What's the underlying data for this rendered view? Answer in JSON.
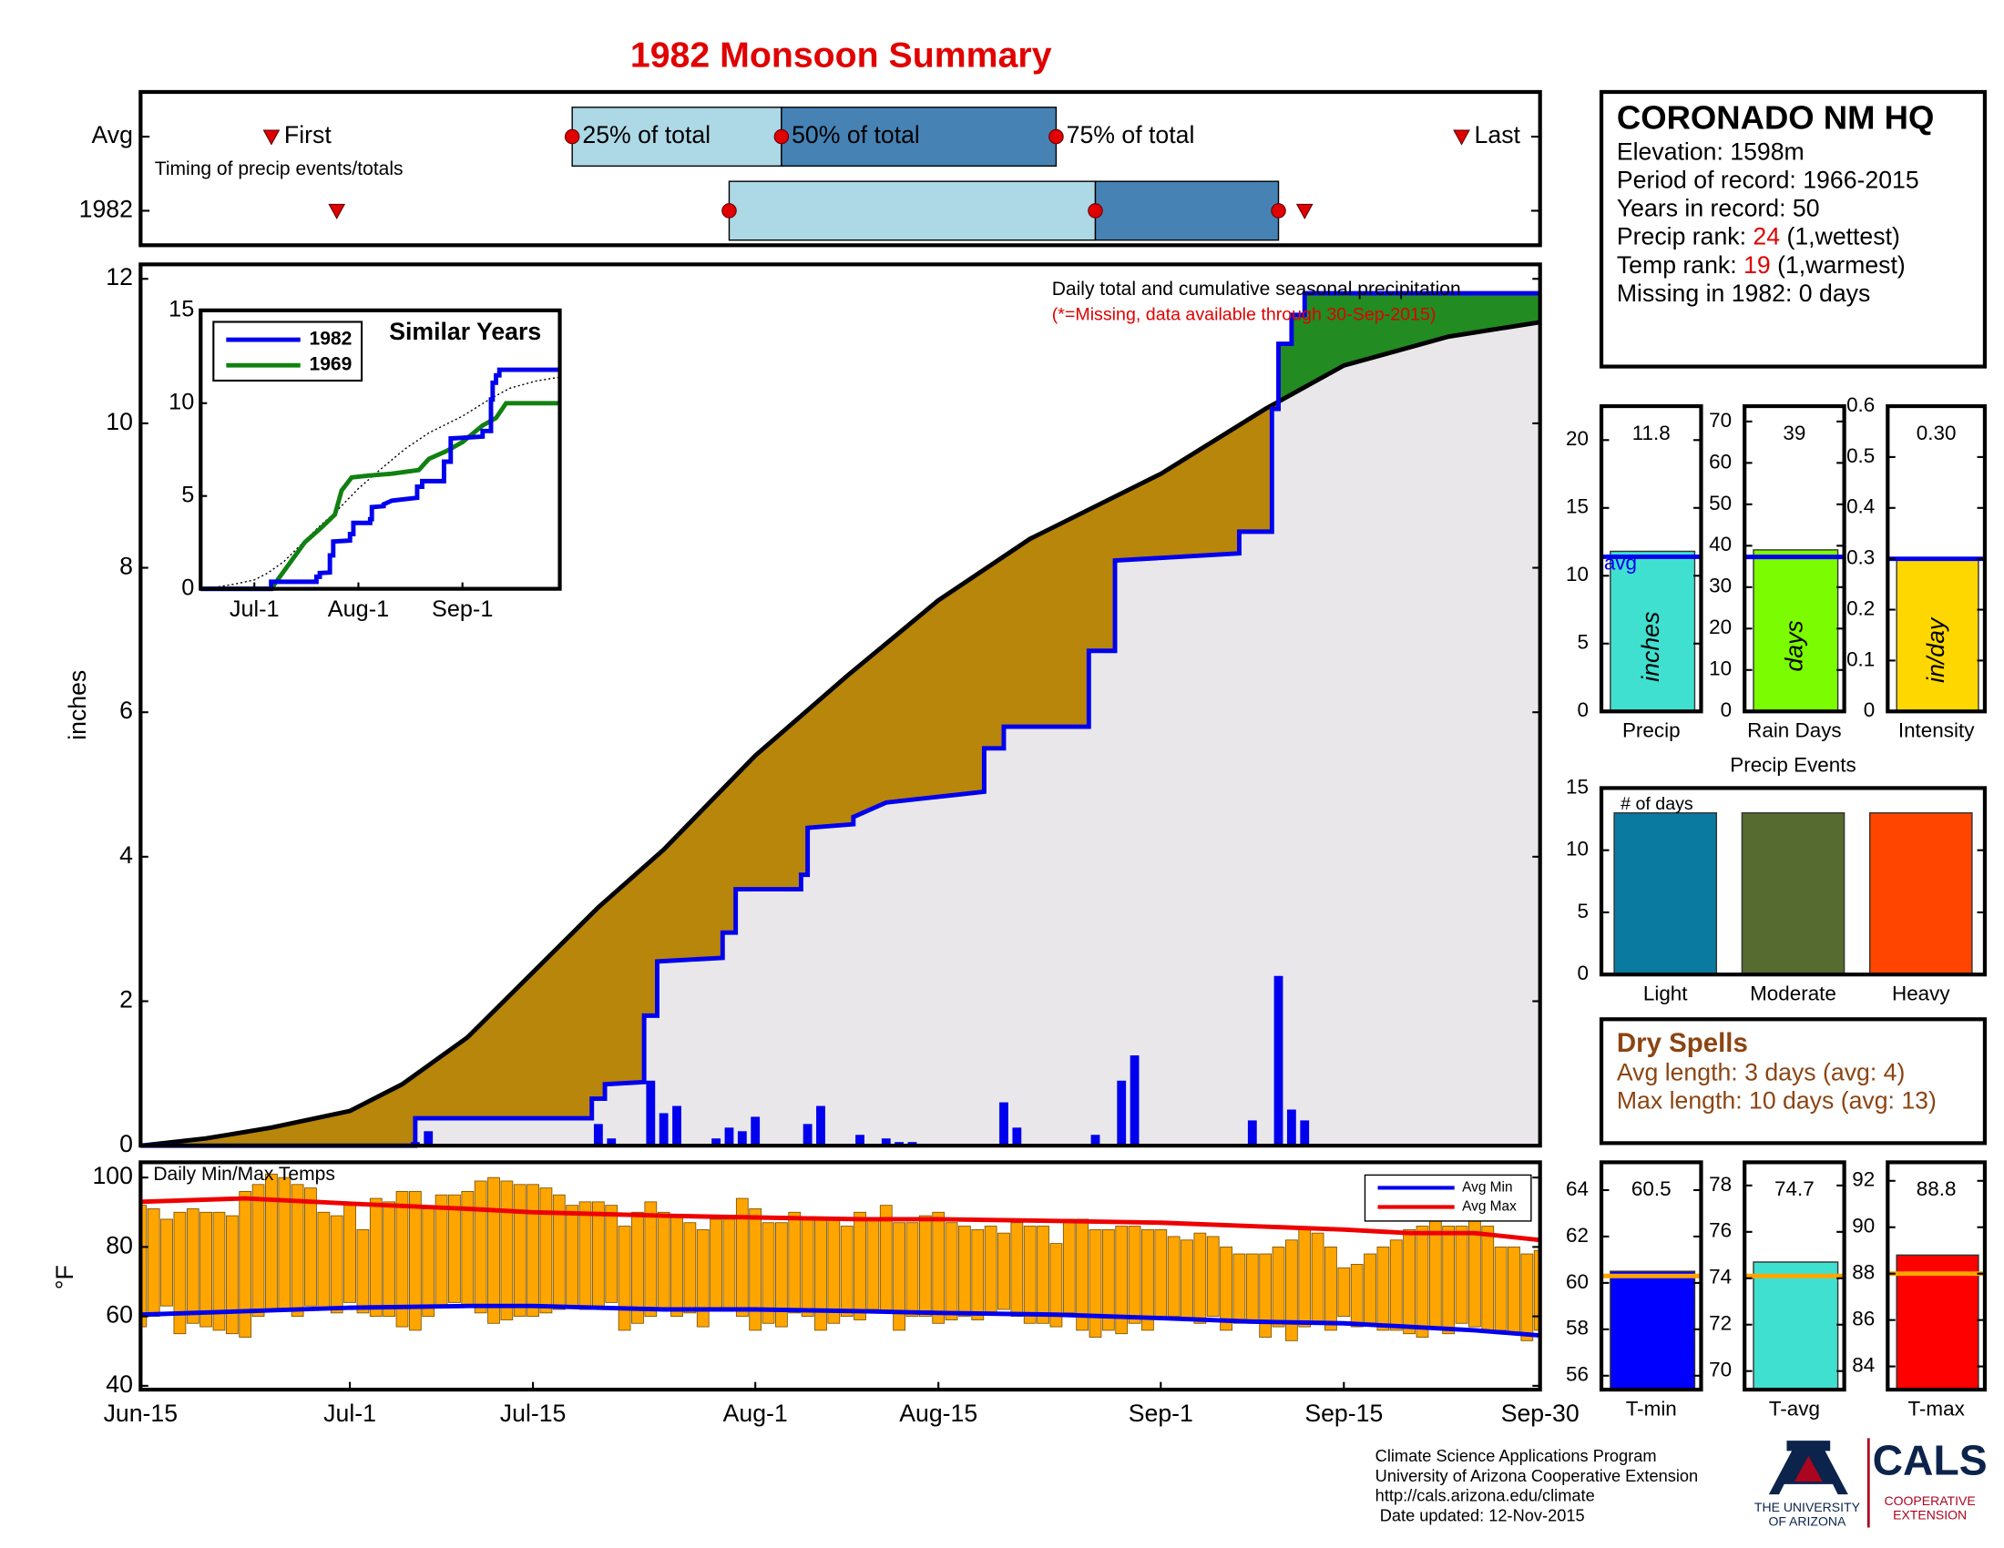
{
  "title": "1982 Monsoon Summary",
  "chart_data": [
    {
      "type": "timing",
      "note": "Timing of precip events/totals",
      "value_names": [
        "First",
        "25% of total",
        "50% of total",
        "75% of total",
        "Last"
      ],
      "xlim": [
        0,
        107
      ],
      "colors": {
        "early": "#add8e6",
        "late": "#4682b4",
        "marker": "#e00000"
      },
      "series": [
        {
          "name": "Avg",
          "values": [
            10,
            33,
            49,
            70,
            101
          ]
        },
        {
          "name": "1982",
          "values": [
            15,
            45,
            73,
            87,
            89
          ]
        }
      ]
    },
    {
      "type": "cumulative",
      "title": "Daily total and cumulative seasonal precipitation",
      "subtitle": "(*=Missing, data available through 30-Sep-2015)",
      "ylabel": "inches",
      "xlim": [
        0,
        107
      ],
      "ylim": [
        0,
        12.2
      ],
      "yticks": [
        0,
        2,
        4,
        6,
        8,
        10,
        12
      ],
      "colors": {
        "background": "#e9e7e9",
        "below": "#b8860b",
        "above": "#228b22"
      },
      "series": [
        {
          "color": "#000000",
          "x": [
            0,
            5,
            10,
            16,
            20,
            25,
            30,
            35,
            40,
            47,
            54,
            61,
            68,
            78,
            86,
            92,
            100,
            107
          ],
          "values": [
            0,
            0.1,
            0.25,
            0.48,
            0.85,
            1.5,
            2.4,
            3.3,
            4.1,
            5.4,
            6.5,
            7.55,
            8.4,
            9.3,
            10.2,
            10.8,
            11.2,
            11.4
          ]
        },
        {
          "color": "#0000ee",
          "x": [
            0,
            21,
            21,
            34.5,
            34.5,
            35.5,
            35.5,
            38.5,
            38.5,
            39.5,
            39.5,
            44.5,
            44.5,
            45.5,
            45.5,
            50.5,
            50.5,
            51,
            51,
            54.5,
            54.5,
            57,
            62,
            64.5,
            64.5,
            66,
            66,
            72.5,
            72.5,
            74.5,
            74.5,
            84,
            84,
            86.5,
            86.5,
            87,
            87,
            88,
            88,
            89,
            89,
            107
          ],
          "values": [
            0,
            0,
            0.38,
            0.38,
            0.65,
            0.65,
            0.85,
            0.88,
            1.8,
            1.8,
            2.55,
            2.6,
            2.95,
            2.95,
            3.55,
            3.55,
            3.75,
            3.75,
            4.4,
            4.45,
            4.55,
            4.75,
            4.85,
            4.9,
            5.5,
            5.5,
            5.8,
            5.8,
            6.85,
            6.85,
            8.1,
            8.2,
            8.5,
            8.5,
            10.2,
            10.2,
            11.1,
            11.1,
            11.5,
            11.5,
            11.8,
            11.8
          ]
        }
      ],
      "bars": {
        "color": "#0000ee",
        "x": [
          21,
          22,
          35,
          36,
          39,
          40,
          41,
          44,
          45,
          46,
          47,
          51,
          52,
          55,
          57,
          58,
          59,
          66,
          67,
          73,
          75,
          76,
          85,
          87,
          88,
          89
        ],
        "values": [
          0.05,
          0.2,
          0.3,
          0.1,
          0.9,
          0.45,
          0.55,
          0.1,
          0.25,
          0.2,
          0.4,
          0.3,
          0.55,
          0.15,
          0.1,
          0.05,
          0.05,
          0.6,
          0.25,
          0.15,
          0.9,
          1.25,
          0.35,
          2.35,
          0.5,
          0.35
        ]
      }
    },
    {
      "type": "line",
      "title": "Similar Years",
      "xlim": [
        0,
        107
      ],
      "xticks": [
        {
          "value": 16,
          "label": "Jul-1"
        },
        {
          "value": 47,
          "label": "Aug-1"
        },
        {
          "value": 78,
          "label": "Sep-1"
        }
      ],
      "ylim": [
        0,
        15
      ],
      "yticks": [
        0,
        5,
        10,
        15
      ],
      "average": {
        "color": "#000000",
        "x": [
          0,
          5,
          10,
          16,
          20,
          25,
          30,
          35,
          40,
          47,
          54,
          61,
          68,
          78,
          86,
          92,
          100,
          107
        ],
        "values": [
          0,
          0.1,
          0.25,
          0.48,
          0.85,
          1.5,
          2.4,
          3.3,
          4.1,
          5.4,
          6.5,
          7.55,
          8.4,
          9.3,
          10.2,
          10.8,
          11.2,
          11.4
        ]
      },
      "series": [
        {
          "name": "1982",
          "color": "#0000ee",
          "x": [
            0,
            21,
            21,
            34.5,
            34.5,
            35.5,
            35.5,
            38.5,
            38.5,
            39.5,
            39.5,
            44.5,
            44.5,
            45.5,
            45.5,
            50.5,
            50.5,
            51,
            51,
            54.5,
            54.5,
            57,
            62,
            64.5,
            64.5,
            66,
            66,
            72.5,
            72.5,
            74.5,
            74.5,
            84,
            84,
            86.5,
            86.5,
            87,
            87,
            88,
            88,
            89,
            89,
            107
          ],
          "values": [
            0,
            0,
            0.38,
            0.38,
            0.65,
            0.65,
            0.85,
            0.88,
            1.8,
            1.8,
            2.55,
            2.6,
            2.95,
            2.95,
            3.55,
            3.55,
            3.75,
            3.75,
            4.4,
            4.45,
            4.55,
            4.75,
            4.85,
            4.9,
            5.5,
            5.5,
            5.8,
            5.8,
            6.85,
            6.85,
            8.1,
            8.2,
            8.5,
            8.5,
            10.2,
            10.2,
            11.1,
            11.1,
            11.5,
            11.5,
            11.8,
            11.8
          ]
        },
        {
          "name": "1969",
          "color": "#108010",
          "x": [
            0,
            21,
            27,
            31,
            36,
            40,
            42,
            45,
            50,
            57,
            65,
            68,
            73,
            78,
            84,
            88,
            91,
            107
          ],
          "values": [
            0,
            0,
            1.5,
            2.5,
            3.3,
            4.0,
            5.3,
            6.0,
            6.1,
            6.2,
            6.4,
            7.0,
            7.4,
            7.9,
            8.8,
            9.2,
            10.0,
            10.0
          ]
        }
      ]
    },
    {
      "type": "range",
      "title": "Daily Min/Max Temps",
      "ylabel": "°F",
      "xlim": [
        0,
        107
      ],
      "xticks": [
        {
          "value": 0,
          "label": "Jun-15"
        },
        {
          "value": 16,
          "label": "Jul-1"
        },
        {
          "value": 30,
          "label": "Jul-15"
        },
        {
          "value": 47,
          "label": "Aug-1"
        },
        {
          "value": 61,
          "label": "Aug-15"
        },
        {
          "value": 78,
          "label": "Sep-1"
        },
        {
          "value": 92,
          "label": "Sep-15"
        },
        {
          "value": 107,
          "label": "Sep-30"
        }
      ],
      "ylim": [
        38.9,
        104.4
      ],
      "yticks": [
        40,
        60,
        80,
        100
      ],
      "bars": {
        "color": "#ffa500",
        "x": [
          0,
          1,
          2,
          3,
          4,
          5,
          6,
          7,
          8,
          9,
          10,
          11,
          12,
          13,
          14,
          15,
          16,
          17,
          18,
          19,
          20,
          21,
          22,
          23,
          24,
          25,
          26,
          27,
          28,
          29,
          30,
          31,
          32,
          33,
          34,
          35,
          36,
          37,
          38,
          39,
          40,
          41,
          42,
          43,
          44,
          45,
          46,
          47,
          48,
          49,
          50,
          51,
          52,
          53,
          54,
          55,
          56,
          57,
          58,
          59,
          60,
          61,
          62,
          63,
          64,
          65,
          66,
          67,
          68,
          69,
          70,
          71,
          72,
          73,
          74,
          75,
          76,
          77,
          78,
          79,
          80,
          81,
          82,
          83,
          84,
          85,
          86,
          87,
          88,
          89,
          90,
          91,
          92,
          93,
          94,
          95,
          96,
          97,
          98,
          99,
          100,
          101,
          102,
          103,
          104,
          105,
          106,
          107
        ],
        "low": [
          57,
          60,
          63,
          55,
          58,
          57,
          56,
          55,
          54,
          60,
          62,
          62,
          60,
          63,
          62,
          61,
          64,
          61,
          60,
          60,
          57,
          56,
          60,
          63,
          64,
          63,
          61,
          58,
          59,
          60,
          60,
          61,
          62,
          63,
          62,
          63,
          64,
          56,
          58,
          60,
          62,
          60,
          61,
          57,
          62,
          62,
          60,
          56,
          58,
          57,
          61,
          60,
          56,
          58,
          60,
          59,
          62,
          61,
          56,
          60,
          60,
          58,
          59,
          60,
          59,
          61,
          62,
          60,
          58,
          58,
          57,
          61,
          56,
          54,
          56,
          55,
          58,
          56,
          60,
          60,
          59,
          58,
          60,
          56,
          58,
          58,
          54,
          57,
          53,
          57,
          58,
          56,
          60,
          57,
          58,
          56,
          56,
          55,
          54,
          57,
          55,
          58,
          57,
          56,
          56,
          55,
          53,
          56
        ],
        "high": [
          92,
          91,
          88,
          90,
          91,
          90,
          90,
          89,
          96,
          98,
          101,
          100,
          98,
          97,
          90,
          89,
          92,
          85,
          94,
          93,
          96,
          96,
          91,
          95,
          95,
          96,
          99,
          100,
          99,
          98,
          98,
          97,
          95,
          92,
          93,
          93,
          92,
          86,
          90,
          93,
          90,
          89,
          87,
          85,
          88,
          88,
          94,
          91,
          87,
          87,
          90,
          88,
          88,
          88,
          86,
          90,
          88,
          92,
          87,
          87,
          89,
          90,
          87,
          86,
          85,
          86,
          84,
          87,
          86,
          86,
          81,
          88,
          88,
          85,
          85,
          86,
          86,
          85,
          85,
          83,
          82,
          84,
          83,
          80,
          78,
          78,
          78,
          80,
          82,
          85,
          84,
          80,
          74,
          75,
          78,
          80,
          82,
          85,
          86,
          88,
          86,
          86,
          88,
          86,
          80,
          80,
          78,
          79
        ]
      },
      "series": [
        {
          "name": "Avg Min",
          "color": "#0000ee",
          "x": [
            0,
            8,
            16,
            25,
            30,
            40,
            47,
            55,
            61,
            70,
            78,
            85,
            92,
            97,
            102,
            107
          ],
          "values": [
            60.5,
            61.5,
            62.5,
            63,
            63,
            62,
            62,
            61.5,
            61,
            60.5,
            59.5,
            58.5,
            58,
            57,
            56,
            54.5
          ]
        },
        {
          "name": "Avg Max",
          "color": "#ee0000",
          "x": [
            0,
            8,
            16,
            25,
            30,
            40,
            47,
            55,
            61,
            70,
            78,
            85,
            92,
            97,
            102,
            107
          ],
          "values": [
            93,
            94,
            92.5,
            91,
            90,
            89,
            88.5,
            88,
            88,
            87.5,
            87,
            86,
            85,
            84,
            84,
            82
          ]
        }
      ]
    },
    {
      "type": "bar",
      "xlabel": "Precip",
      "unit": "inches",
      "values": [
        11.8
      ],
      "avg": 11.4,
      "avg_label": "avg",
      "avg_color": "#0000ee",
      "color": "#40e0d0",
      "ylim": [
        0,
        22.5
      ],
      "yticks": [
        0,
        5,
        10,
        15,
        20
      ]
    },
    {
      "type": "bar",
      "xlabel": "Rain Days",
      "unit": "days",
      "values": [
        39
      ],
      "avg": 37.3,
      "avg_color": "#0000ee",
      "color": "#7cfc00",
      "ylim": [
        0,
        73.7
      ],
      "yticks": [
        0,
        10,
        20,
        30,
        40,
        50,
        60,
        70
      ]
    },
    {
      "type": "bar",
      "xlabel": "Intensity",
      "unit": "in/day",
      "values": [
        0.3
      ],
      "value_labels": [
        "0.30"
      ],
      "avg": 0.3,
      "avg_color": "#0000ee",
      "color": "#ffd700",
      "ylim": [
        0,
        0.6
      ],
      "yticks": [
        0,
        0.1,
        0.2,
        0.3,
        0.4,
        0.5,
        0.6
      ]
    },
    {
      "type": "events",
      "title": "Precip Events",
      "ylabel": "# of days",
      "categories": [
        "Light",
        "Moderate",
        "Heavy"
      ],
      "values": [
        13,
        13,
        13
      ],
      "colors": [
        "#0a7aa0",
        "#556b2f",
        "#ff4500"
      ],
      "ylim": [
        0,
        15
      ],
      "yticks": [
        0,
        5,
        10,
        15
      ]
    },
    {
      "type": "bar",
      "xlabel": "T-min",
      "values": [
        60.5
      ],
      "avg": 60.3,
      "avg_color": "#ffa500",
      "color": "#0000ff",
      "ylim": [
        55.4,
        65.2
      ],
      "yticks": [
        56,
        58,
        60,
        62,
        64
      ]
    },
    {
      "type": "bar",
      "xlabel": "T-avg",
      "values": [
        74.7
      ],
      "avg": 74.1,
      "avg_color": "#ffa500",
      "color": "#40e0d0",
      "ylim": [
        69.2,
        79.0
      ],
      "yticks": [
        70,
        72,
        74,
        76,
        78
      ]
    },
    {
      "type": "bar",
      "xlabel": "T-max",
      "values": [
        88.8
      ],
      "avg": 88.0,
      "avg_color": "#ffa500",
      "color": "#ff0000",
      "ylim": [
        83.0,
        92.8
      ],
      "yticks": [
        84,
        86,
        88,
        90,
        92
      ]
    }
  ],
  "station": {
    "name": "CORONADO NM HQ",
    "lines": [
      [
        "Elevation: 1598m"
      ],
      [
        "Period of record: 1966-2015"
      ],
      [
        "Years in record: 50"
      ],
      [
        "Precip rank: ",
        "24",
        " (1,wettest)"
      ],
      [
        "Temp rank: ",
        "19",
        " (1,warmest)"
      ],
      [
        "Missing in 1982: 0 days"
      ]
    ]
  },
  "dry_spells": {
    "title": "Dry Spells",
    "lines": [
      "Avg length: 3 days (avg: 4)",
      "Max length: 10 days (avg: 13)"
    ]
  },
  "footer": [
    "Climate Science Applications Program",
    "University of Arizona Cooperative Extension",
    "http://cals.arizona.edu/climate",
    " Date updated: 12-Nov-2015"
  ],
  "logo": {
    "university": [
      "THE UNIVERSITY",
      "OF ARIZONA"
    ],
    "cals": "CALS",
    "extension": [
      "COOPERATIVE",
      "EXTENSION"
    ]
  }
}
